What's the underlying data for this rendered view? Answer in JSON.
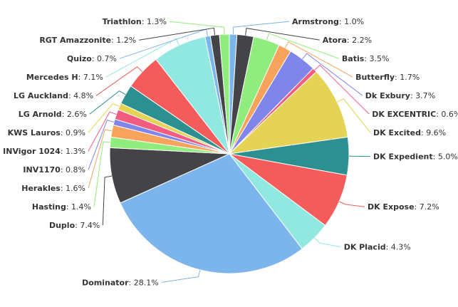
{
  "chart_data": {
    "type": "pie",
    "title": "",
    "slices": [
      {
        "label": "Armstrong",
        "value": 1.0,
        "color": "#7cb5ec"
      },
      {
        "label": "Atora",
        "value": 2.2,
        "color": "#434348"
      },
      {
        "label": "Batis",
        "value": 3.5,
        "color": "#90ed7d"
      },
      {
        "label": "Butterfly",
        "value": 1.7,
        "color": "#f7a35c"
      },
      {
        "label": "Dk Exbury",
        "value": 3.7,
        "color": "#8085e9"
      },
      {
        "label": "DK EXCENTRIC",
        "value": 0.6,
        "color": "#f15c80"
      },
      {
        "label": "DK Excited",
        "value": 9.6,
        "color": "#e4d354"
      },
      {
        "label": "DK Expedient",
        "value": 5.0,
        "color": "#2b908f"
      },
      {
        "label": "DK Expose",
        "value": 7.2,
        "color": "#f45b5b"
      },
      {
        "label": "DK Placid",
        "value": 4.3,
        "color": "#91e8e1"
      },
      {
        "label": "Dominator",
        "value": 28.1,
        "color": "#7cb5ec"
      },
      {
        "label": "Duplo",
        "value": 7.4,
        "color": "#434348"
      },
      {
        "label": "Hasting",
        "value": 1.4,
        "color": "#90ed7d"
      },
      {
        "label": "Herakles",
        "value": 1.6,
        "color": "#f7a35c"
      },
      {
        "label": "INV1170",
        "value": 0.8,
        "color": "#8085e9"
      },
      {
        "label": "INVigor 1024",
        "value": 1.3,
        "color": "#f15c80"
      },
      {
        "label": "KWS Lauros",
        "value": 0.9,
        "color": "#e4d354"
      },
      {
        "label": "LG Arnold",
        "value": 2.6,
        "color": "#2b908f"
      },
      {
        "label": "LG Auckland",
        "value": 4.8,
        "color": "#f45b5b"
      },
      {
        "label": "Mercedes H",
        "value": 7.1,
        "color": "#91e8e1"
      },
      {
        "label": "Quizo",
        "value": 0.7,
        "color": "#7cb5ec"
      },
      {
        "label": "RGT Amazzonite",
        "value": 1.2,
        "color": "#434348"
      },
      {
        "label": "Triathlon",
        "value": 1.3,
        "color": "#90ed7d"
      }
    ],
    "legend": "none"
  }
}
